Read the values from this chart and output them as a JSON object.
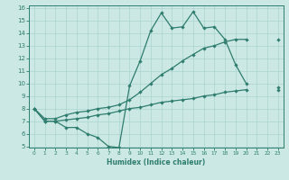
{
  "xlabel": "Humidex (Indice chaleur)",
  "color": "#2e7d6e",
  "bg_color": "#cce8e4",
  "grid_color": "#aad4cf",
  "ylim": [
    5,
    16
  ],
  "xlim": [
    -0.5,
    23.5
  ],
  "yticks": [
    5,
    6,
    7,
    8,
    9,
    10,
    11,
    12,
    13,
    14,
    15,
    16
  ],
  "xticks": [
    0,
    1,
    2,
    3,
    4,
    5,
    6,
    7,
    8,
    9,
    10,
    11,
    12,
    13,
    14,
    15,
    16,
    17,
    18,
    19,
    20,
    21,
    22,
    23
  ],
  "y_top": [
    8.0,
    7.0,
    7.0,
    6.5,
    6.5,
    6.0,
    5.7,
    5.0,
    4.9,
    9.8,
    11.8,
    14.2,
    15.6,
    14.4,
    14.5,
    15.7,
    14.4,
    14.5,
    13.5,
    11.5,
    10.0,
    null,
    null,
    9.5
  ],
  "y_mid": [
    8.0,
    7.2,
    7.2,
    7.5,
    7.7,
    7.8,
    8.0,
    8.1,
    8.3,
    8.7,
    9.3,
    10.0,
    10.7,
    11.2,
    11.8,
    12.3,
    12.8,
    13.0,
    13.3,
    13.5,
    13.5,
    null,
    null,
    13.5
  ],
  "y_bot": [
    8.0,
    7.0,
    7.0,
    7.1,
    7.2,
    7.3,
    7.5,
    7.6,
    7.8,
    8.0,
    8.1,
    8.3,
    8.5,
    8.6,
    8.7,
    8.8,
    9.0,
    9.1,
    9.3,
    9.4,
    9.5,
    null,
    null,
    9.7
  ]
}
